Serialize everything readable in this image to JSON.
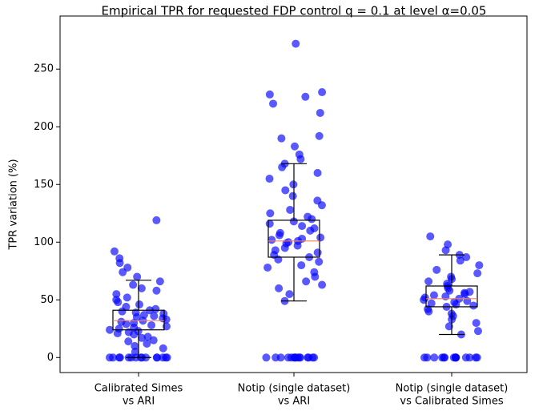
{
  "chart_data": {
    "type": "box",
    "title": "Empirical TPR for requested FDP control q = 0.1 at level α=0.05",
    "y_label": "TPR variation (%)",
    "categories": [
      [
        "Calibrated Simes",
        "vs ARI"
      ],
      [
        "Notip (single dataset)",
        "vs ARI"
      ],
      [
        "Notip (single dataset)",
        "vs Calibrated Simes"
      ]
    ],
    "box_color": "#000000",
    "median_color": "#f08060",
    "point_color": "#0000ff",
    "boxes": [
      {
        "whislo": 0,
        "q1": 24,
        "med": 32,
        "q3": 41,
        "whishi": 67
      },
      {
        "whislo": 49,
        "q1": 87,
        "med": 101,
        "q3": 119,
        "whishi": 168
      },
      {
        "whislo": 20,
        "q1": 44,
        "med": 51,
        "q3": 62,
        "whishi": 89
      }
    ],
    "points": [
      [
        0,
        0,
        0,
        0,
        0,
        0,
        0,
        0,
        0,
        0,
        0,
        0,
        0,
        0,
        0,
        5,
        8,
        10,
        12,
        14,
        15,
        17,
        18,
        20,
        21,
        22,
        23,
        24,
        25,
        26,
        27,
        28,
        29,
        30,
        31,
        32,
        33,
        34,
        35,
        36,
        37,
        38,
        39,
        40,
        41,
        42,
        44,
        46,
        48,
        50,
        52,
        55,
        58,
        60,
        63,
        66,
        70,
        74,
        78,
        82,
        86,
        92,
        119
      ],
      [
        0,
        0,
        0,
        0,
        0,
        0,
        0,
        0,
        0,
        0,
        0,
        0,
        0,
        0,
        0,
        49,
        55,
        60,
        63,
        66,
        70,
        74,
        78,
        80,
        83,
        85,
        87,
        89,
        91,
        93,
        95,
        97,
        99,
        100,
        101,
        102,
        103,
        104,
        106,
        108,
        110,
        112,
        114,
        116,
        118,
        120,
        122,
        125,
        128,
        132,
        136,
        140,
        145,
        150,
        155,
        160,
        165,
        168,
        172,
        176,
        183,
        190,
        192,
        212,
        220,
        226,
        228,
        230,
        272
      ],
      [
        0,
        0,
        0,
        0,
        0,
        0,
        0,
        0,
        0,
        0,
        0,
        0,
        0,
        0,
        0,
        20,
        23,
        27,
        30,
        33,
        36,
        38,
        40,
        42,
        44,
        45,
        46,
        47,
        48,
        49,
        50,
        51,
        52,
        53,
        54,
        55,
        56,
        57,
        58,
        60,
        62,
        64,
        66,
        68,
        70,
        73,
        76,
        80,
        84,
        87,
        89,
        93,
        98,
        105
      ]
    ],
    "ylim": [
      -13,
      296
    ],
    "yticks": [
      0,
      50,
      100,
      150,
      200,
      250
    ],
    "grid": false
  }
}
